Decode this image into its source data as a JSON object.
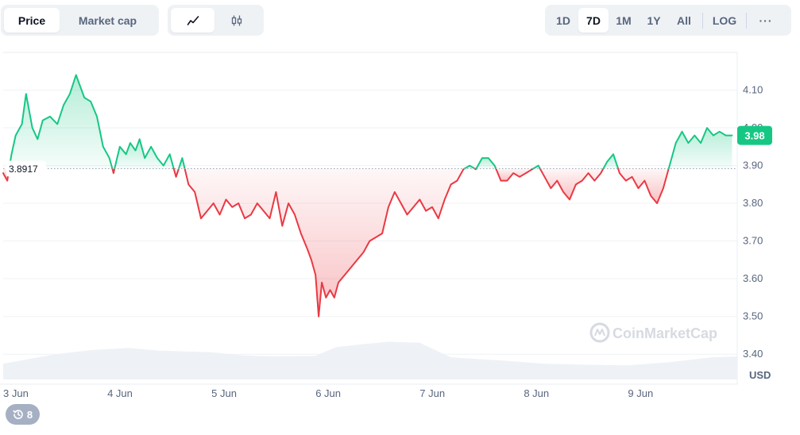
{
  "tabs": {
    "price_label": "Price",
    "marketcap_label": "Market cap"
  },
  "chart_type_icons": [
    "line-chart-icon",
    "candlestick-icon"
  ],
  "ranges": [
    "1D",
    "7D",
    "1M",
    "1Y",
    "All"
  ],
  "active_range": "7D",
  "log_label": "LOG",
  "more_label": "···",
  "history_count": "8",
  "watermark": "CoinMarketCap",
  "colors": {
    "up": "#16c784",
    "down": "#ea3943",
    "active_range_bg": "#ffffff"
  },
  "chart_data": {
    "type": "line",
    "currency_label": "USD",
    "baseline_label": "3.8917",
    "current_label": "3.98",
    "baseline": 3.8917,
    "ylim": [
      3.35,
      4.2
    ],
    "yticks": [
      "4.10",
      "4.00",
      "3.90",
      "3.80",
      "3.70",
      "3.60",
      "3.50",
      "3.40"
    ],
    "ytick_values": [
      4.1,
      4.0,
      3.9,
      3.8,
      3.7,
      3.6,
      3.5,
      3.4
    ],
    "xticks": [
      "3 Jun",
      "4 Jun",
      "5 Jun",
      "6 Jun",
      "7 Jun",
      "8 Jun",
      "9 Jun"
    ],
    "xtick_values": [
      0,
      1,
      2,
      3,
      4,
      5,
      6
    ],
    "xlim": [
      0,
      7.05
    ],
    "series": [
      {
        "x": [
          0,
          0.04,
          0.08,
          0.12,
          0.18,
          0.22,
          0.28,
          0.33,
          0.38,
          0.45,
          0.52,
          0.58,
          0.64,
          0.7,
          0.78,
          0.84,
          0.9,
          0.96,
          1.02,
          1.06,
          1.12,
          1.18,
          1.22,
          1.27,
          1.31,
          1.36,
          1.42,
          1.48,
          1.54,
          1.6,
          1.66,
          1.72,
          1.78,
          1.84,
          1.9,
          1.96,
          2.02,
          2.08,
          2.14,
          2.2,
          2.26,
          2.32,
          2.38,
          2.44,
          2.5,
          2.56,
          2.62,
          2.68,
          2.74,
          2.8,
          2.86,
          2.92,
          2.96,
          3.0,
          3.03,
          3.06,
          3.1,
          3.14,
          3.18,
          3.22,
          3.28,
          3.34,
          3.4,
          3.46,
          3.52,
          3.58,
          3.64,
          3.7,
          3.76,
          3.82,
          3.88,
          3.94,
          4.0,
          4.06,
          4.12,
          4.18,
          4.24,
          4.3,
          4.36,
          4.42,
          4.48,
          4.54,
          4.6,
          4.66,
          4.72,
          4.78,
          4.84,
          4.9,
          4.96,
          5.02,
          5.08,
          5.14,
          5.2,
          5.26,
          5.32,
          5.38,
          5.44,
          5.5,
          5.56,
          5.62,
          5.68,
          5.74,
          5.8,
          5.86,
          5.92,
          5.98,
          6.04,
          6.1,
          6.16,
          6.22,
          6.28,
          6.34,
          6.4,
          6.46,
          6.52,
          6.58,
          6.64,
          6.7,
          6.76,
          6.82,
          6.88,
          6.94,
          7.0
        ],
        "y": [
          3.88,
          3.86,
          3.93,
          3.98,
          4.01,
          4.09,
          4.0,
          3.97,
          4.02,
          4.03,
          4.01,
          4.06,
          4.09,
          4.14,
          4.08,
          4.07,
          4.03,
          3.95,
          3.92,
          3.88,
          3.95,
          3.93,
          3.96,
          3.94,
          3.97,
          3.92,
          3.95,
          3.92,
          3.9,
          3.93,
          3.87,
          3.92,
          3.85,
          3.83,
          3.76,
          3.78,
          3.8,
          3.77,
          3.81,
          3.79,
          3.8,
          3.76,
          3.77,
          3.8,
          3.78,
          3.76,
          3.83,
          3.74,
          3.8,
          3.77,
          3.72,
          3.68,
          3.65,
          3.61,
          3.5,
          3.59,
          3.55,
          3.57,
          3.55,
          3.59,
          3.61,
          3.63,
          3.65,
          3.67,
          3.7,
          3.71,
          3.72,
          3.79,
          3.83,
          3.8,
          3.77,
          3.79,
          3.81,
          3.78,
          3.79,
          3.76,
          3.81,
          3.85,
          3.86,
          3.89,
          3.9,
          3.89,
          3.92,
          3.92,
          3.9,
          3.86,
          3.86,
          3.88,
          3.87,
          3.88,
          3.89,
          3.9,
          3.87,
          3.84,
          3.86,
          3.83,
          3.81,
          3.85,
          3.86,
          3.88,
          3.86,
          3.88,
          3.91,
          3.93,
          3.88,
          3.86,
          3.87,
          3.84,
          3.86,
          3.82,
          3.8,
          3.84,
          3.9,
          3.96,
          3.99,
          3.96,
          3.98,
          3.96,
          4.0,
          3.98,
          3.99,
          3.98,
          3.98
        ]
      },
      {
        "name": "Volume",
        "x": [
          0,
          0.5,
          0.85,
          1.2,
          1.5,
          2.0,
          2.3,
          2.6,
          3.0,
          3.2,
          3.5,
          3.7,
          4.0,
          4.3,
          4.8,
          5.2,
          5.6,
          6.0,
          6.4,
          6.8,
          7.05
        ],
        "y": [
          0.3,
          0.48,
          0.56,
          0.6,
          0.55,
          0.52,
          0.46,
          0.44,
          0.45,
          0.62,
          0.68,
          0.72,
          0.7,
          0.42,
          0.36,
          0.3,
          0.28,
          0.27,
          0.33,
          0.42,
          0.44
        ]
      }
    ]
  }
}
